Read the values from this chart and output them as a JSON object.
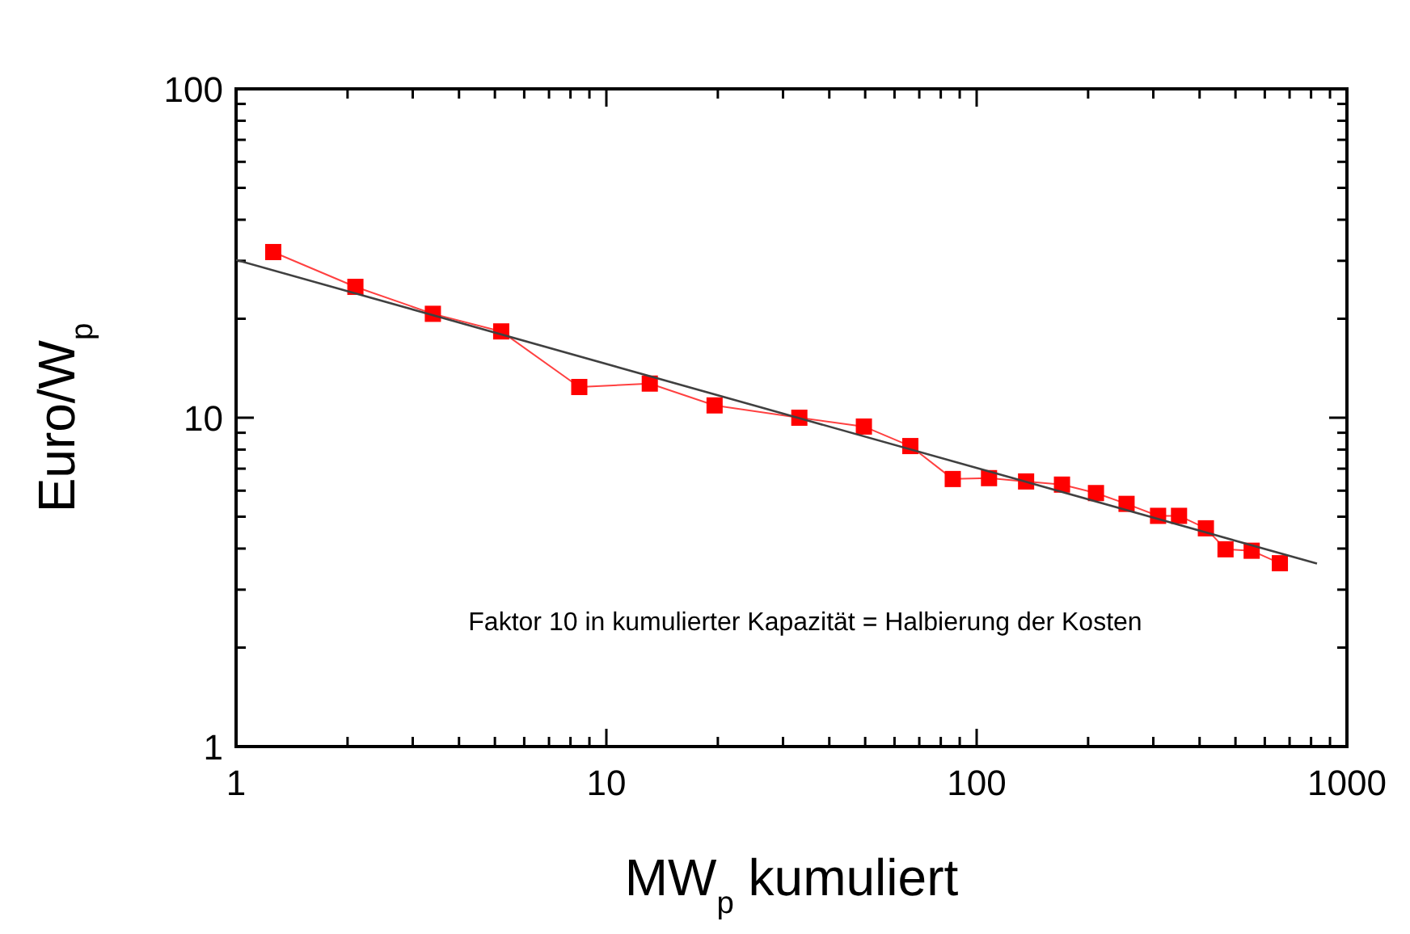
{
  "chart_data": {
    "type": "line",
    "xlabel": "MW$_{p}$ kumuliert",
    "ylabel": "Euro/W$_{p}$",
    "log": "xy",
    "grid": false,
    "xlim": [
      1,
      1000
    ],
    "ylim": [
      1,
      100
    ],
    "xticks": [
      1,
      {
        "value": 2,
        "label": null
      },
      {
        "value": 3,
        "label": null
      },
      {
        "value": 4,
        "label": null
      },
      {
        "value": 5,
        "label": null
      },
      {
        "value": 6,
        "label": null
      },
      {
        "value": 7,
        "label": null
      },
      {
        "value": 8,
        "label": null
      },
      {
        "value": 9,
        "label": null
      },
      10,
      {
        "value": 20,
        "label": null
      },
      {
        "value": 30,
        "label": null
      },
      {
        "value": 40,
        "label": null
      },
      {
        "value": 50,
        "label": null
      },
      {
        "value": 60,
        "label": null
      },
      {
        "value": 70,
        "label": null
      },
      {
        "value": 80,
        "label": null
      },
      {
        "value": 90,
        "label": null
      },
      100,
      {
        "value": 200,
        "label": null
      },
      {
        "value": 300,
        "label": null
      },
      {
        "value": 400,
        "label": null
      },
      {
        "value": 500,
        "label": null
      },
      {
        "value": 600,
        "label": null
      },
      {
        "value": 700,
        "label": null
      },
      {
        "value": 800,
        "label": null
      },
      {
        "value": 900,
        "label": null
      },
      1000
    ],
    "yticks": [
      1,
      {
        "value": 2,
        "label": null
      },
      {
        "value": 3,
        "label": null
      },
      {
        "value": 4,
        "label": null
      },
      {
        "value": 5,
        "label": null
      },
      {
        "value": 6,
        "label": null
      },
      {
        "value": 7,
        "label": null
      },
      {
        "value": 8,
        "label": null
      },
      {
        "value": 9,
        "label": null
      },
      10,
      {
        "value": 20,
        "label": null
      },
      {
        "value": 30,
        "label": null
      },
      {
        "value": 40,
        "label": null
      },
      {
        "value": 50,
        "label": null
      },
      {
        "value": 60,
        "label": null
      },
      {
        "value": 70,
        "label": null
      },
      {
        "value": 80,
        "label": null
      },
      {
        "value": 90,
        "label": null
      },
      100
    ],
    "annotations": [
      "Faktor 10 in kumulierter Kapazität = Halbierung der Kosten"
    ],
    "series": [
      {
        "color": "#ff0000",
        "marker": "square",
        "line_style": "solid",
        "x": [
          1.26,
          2.1,
          3.4,
          5.2,
          8.45,
          13.1,
          19.6,
          33.2,
          49.6,
          66.2,
          86.2,
          108,
          136,
          170,
          210,
          254,
          309,
          352,
          416,
          470,
          553,
          659
        ],
        "values": [
          31.9,
          25.0,
          20.7,
          18.3,
          12.4,
          12.7,
          10.9,
          10.0,
          9.4,
          8.2,
          6.51,
          6.55,
          6.4,
          6.26,
          5.9,
          5.47,
          5.03,
          5.03,
          4.61,
          3.98,
          3.94,
          3.61
        ]
      },
      {
        "color": "#404040",
        "marker": "none",
        "line_style": "solid",
        "x": [
          1,
          830
        ],
        "values": [
          30.2,
          3.6
        ]
      }
    ]
  }
}
